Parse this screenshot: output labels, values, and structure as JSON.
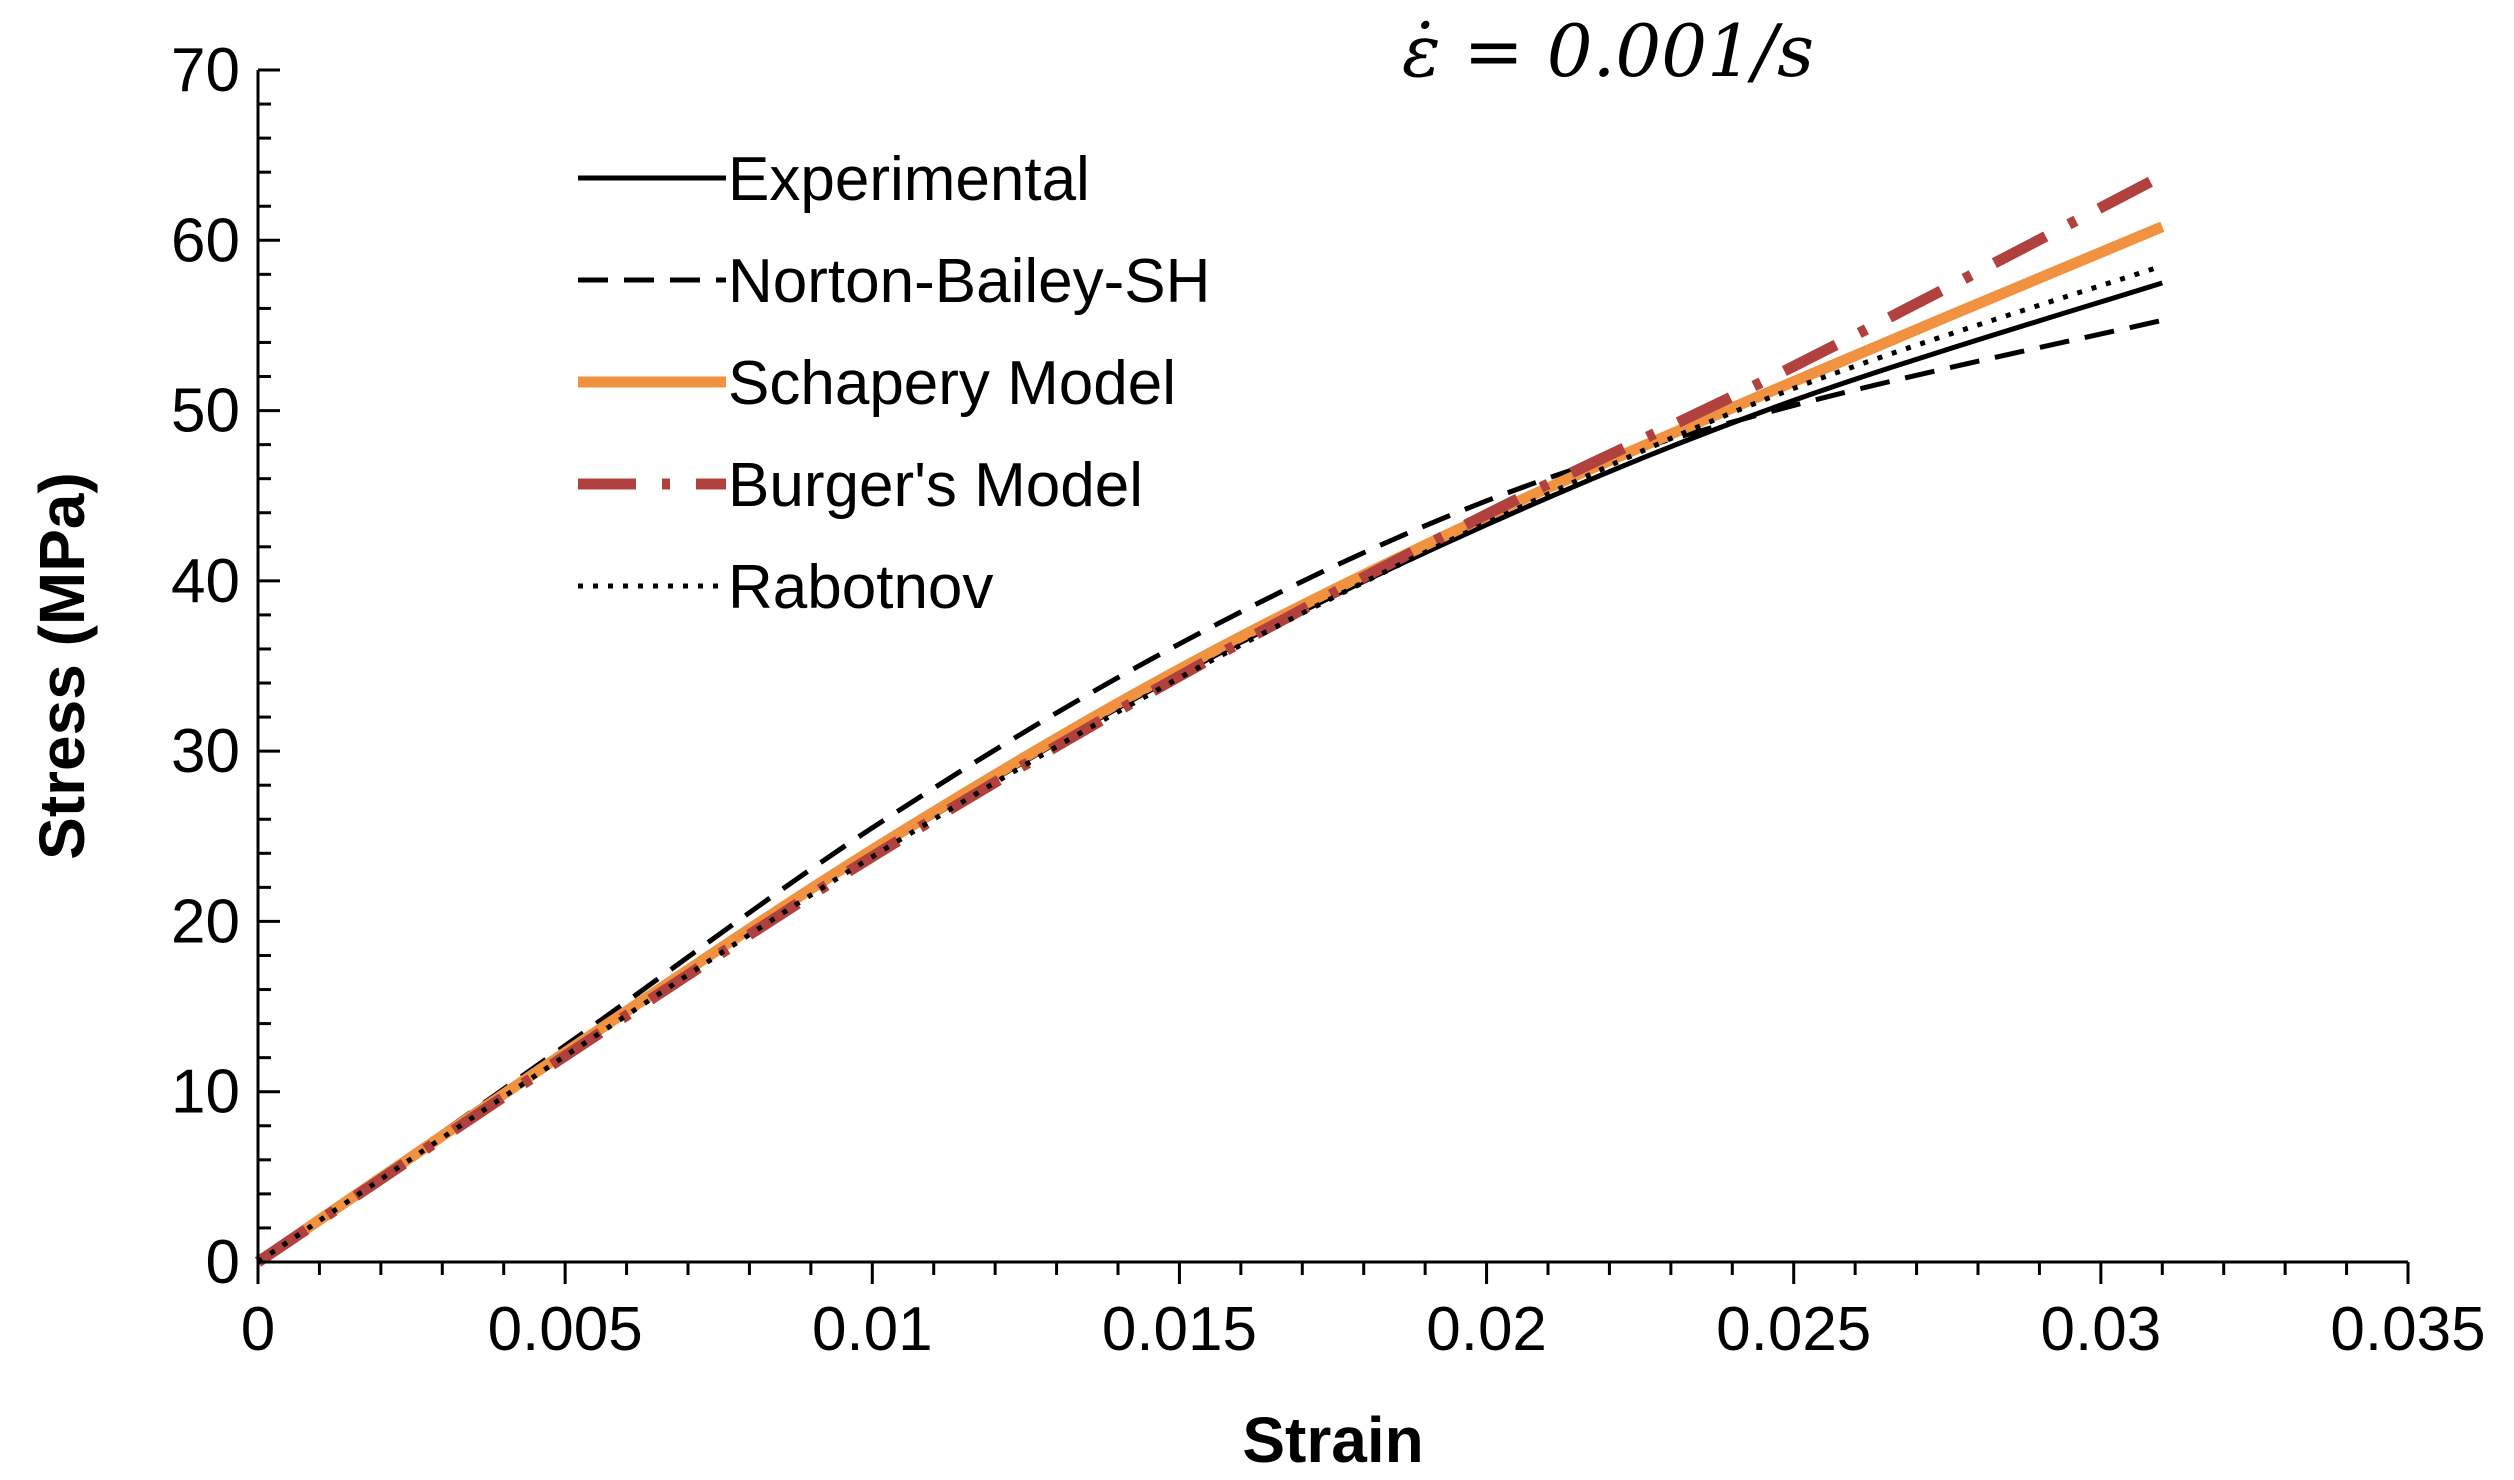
{
  "chart_data": {
    "type": "line",
    "title": "",
    "annotation": "ε̇ = 0.001/s",
    "xlabel": "Strain",
    "ylabel": "Stress (MPa)",
    "xlim": [
      0,
      0.035
    ],
    "ylim": [
      0,
      70
    ],
    "x_major_step": 0.005,
    "x_minor_step": 0.001,
    "y_major_step": 10,
    "y_minor_step": 2,
    "grid": false,
    "legend_position": "top-left",
    "x_tick_labels": [
      "0",
      "0.005",
      "0.01",
      "0.015",
      "0.02",
      "0.025",
      "0.03",
      "0.035"
    ],
    "y_tick_labels": [
      "0",
      "10",
      "20",
      "30",
      "40",
      "50",
      "60",
      "70"
    ],
    "series": [
      {
        "name": "Experimental",
        "color": "#000000",
        "style": "solid",
        "x": [
          0,
          0.005,
          0.01,
          0.015,
          0.02,
          0.025,
          0.031
        ],
        "y": [
          0,
          12.2,
          24.0,
          34.5,
          43.3,
          50.6,
          57.5
        ]
      },
      {
        "name": "Norton-Bailey-SH",
        "color": "#000000",
        "style": "dash",
        "x": [
          0,
          0.005,
          0.01,
          0.015,
          0.02,
          0.025,
          0.031
        ],
        "y": [
          0,
          12.7,
          25.5,
          36.3,
          44.7,
          50.3,
          55.3
        ]
      },
      {
        "name": "Schapery Model",
        "color": "#f0923f",
        "style": "solid-thick",
        "x": [
          0,
          0.005,
          0.01,
          0.015,
          0.02,
          0.025,
          0.031
        ],
        "y": [
          0,
          12.3,
          24.2,
          34.8,
          43.8,
          51.7,
          60.8
        ]
      },
      {
        "name": "Burger's Model",
        "color": "#b0413e",
        "style": "dashdot",
        "x": [
          0,
          0.005,
          0.01,
          0.015,
          0.02,
          0.025,
          0.031
        ],
        "y": [
          0,
          12.1,
          23.8,
          34.4,
          43.9,
          52.6,
          63.8
        ]
      },
      {
        "name": "Rabotnov",
        "color": "#000000",
        "style": "dot",
        "x": [
          0,
          0.005,
          0.01,
          0.015,
          0.02,
          0.025,
          0.031
        ],
        "y": [
          0,
          12.1,
          23.8,
          34.3,
          43.4,
          51.3,
          58.5
        ]
      }
    ]
  }
}
